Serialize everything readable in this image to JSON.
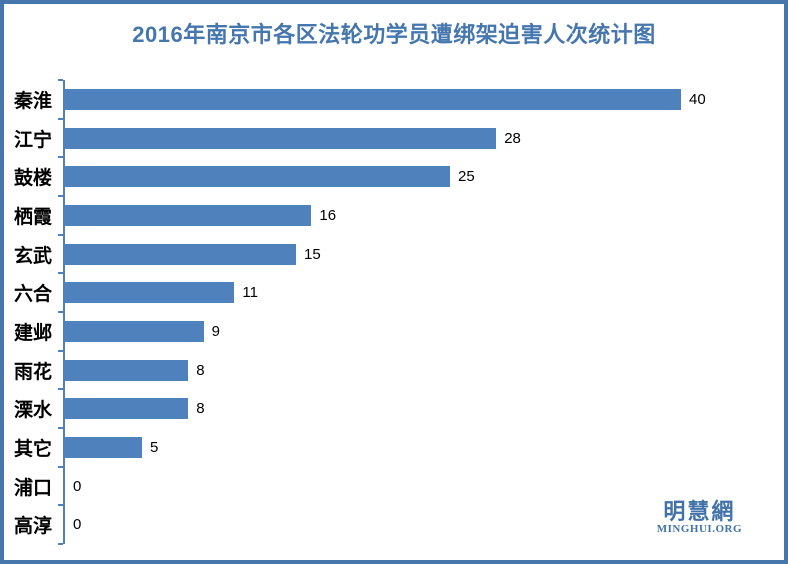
{
  "title": "2016年南京市各区法轮功学员遭绑架迫害人次统计图",
  "chart_data": {
    "type": "bar",
    "orientation": "horizontal",
    "title": "2016年南京市各区法轮功学员遭绑架迫害人次统计图",
    "categories": [
      "秦淮",
      "江宁",
      "鼓楼",
      "栖霞",
      "玄武",
      "六合",
      "建邺",
      "雨花",
      "溧水",
      "其它",
      "浦口",
      "高淳"
    ],
    "values": [
      40,
      28,
      25,
      16,
      15,
      11,
      9,
      8,
      8,
      5,
      0,
      0
    ],
    "xlabel": "",
    "ylabel": "",
    "xlim": [
      0,
      44
    ],
    "grid": false,
    "legend": false,
    "value_labels_shown": true,
    "bar_color": "#4f81bd"
  },
  "colors": {
    "bar": "#4f81bd",
    "frame_border": "#4676ab",
    "title_text": "#4576ad",
    "axis": "#4f81bd",
    "value_text": "#000000",
    "category_text": "#000000",
    "logo_text": "#4273a8",
    "background": "#ffffff"
  },
  "logo": {
    "name_cn": "明慧網",
    "name_en": "MINGHUI.ORG"
  }
}
